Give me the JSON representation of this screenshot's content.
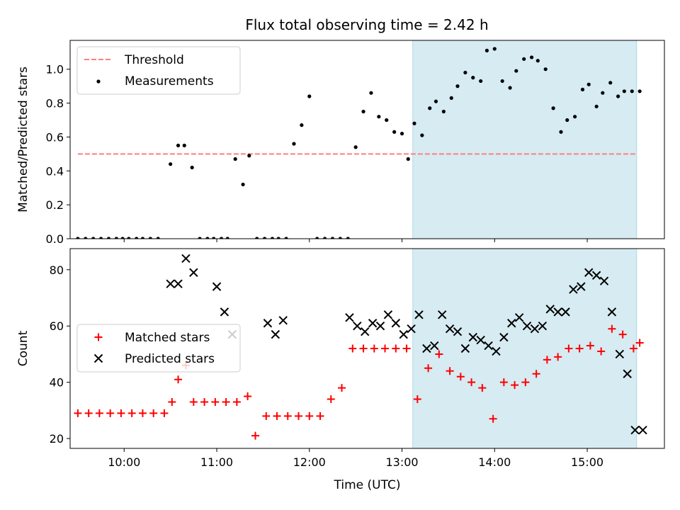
{
  "title": "Flux total observing time = 2.42 h",
  "chart_data": [
    {
      "type": "scatter",
      "ylabel": "Matched/Predicted stars",
      "xlabel": "",
      "xlim": [
        "09:25",
        "15:50"
      ],
      "ylim": [
        0,
        1.17
      ],
      "yticks": [
        "0.0",
        "0.2",
        "0.4",
        "0.6",
        "0.8",
        "1.0"
      ],
      "xticks": [
        "10:00",
        "11:00",
        "12:00",
        "13:00",
        "14:00",
        "15:00"
      ],
      "show_xtick_labels": false,
      "legend": {
        "position": "top-left",
        "entries": [
          "Threshold",
          "Measurements"
        ]
      },
      "shaded_span": {
        "from": "13:07",
        "to": "15:32",
        "color": "#add8e6"
      },
      "threshold": {
        "name": "Threshold",
        "value": 0.5,
        "from": "09:30",
        "to": "15:32",
        "color": "#ff7f7f"
      },
      "series": [
        {
          "name": "Measurements",
          "color": "#000000",
          "x": [
            "09:30",
            "09:35",
            "09:40",
            "09:45",
            "09:50",
            "09:55",
            "09:59",
            "10:03",
            "10:08",
            "10:12",
            "10:17",
            "10:22",
            "10:30",
            "10:35",
            "10:39",
            "10:44",
            "10:49",
            "10:54",
            "10:58",
            "11:03",
            "11:07",
            "11:12",
            "11:17",
            "11:21",
            "11:26",
            "11:31",
            "11:36",
            "11:40",
            "11:45",
            "11:50",
            "11:55",
            "12:00",
            "12:05",
            "12:10",
            "12:15",
            "12:20",
            "12:25",
            "12:30",
            "12:35",
            "12:40",
            "12:45",
            "12:50",
            "12:55",
            "13:00",
            "13:04",
            "13:08",
            "13:13",
            "13:18",
            "13:22",
            "13:27",
            "13:32",
            "13:36",
            "13:41",
            "13:46",
            "13:51",
            "13:55",
            "14:00",
            "14:05",
            "14:10",
            "14:14",
            "14:19",
            "14:24",
            "14:28",
            "14:33",
            "14:38",
            "14:43",
            "14:47",
            "14:52",
            "14:57",
            "15:01",
            "15:06",
            "15:10",
            "15:15",
            "15:20",
            "15:24",
            "15:29",
            "15:34"
          ],
          "y": [
            0,
            0,
            0,
            0,
            0,
            0,
            0,
            0,
            0,
            0,
            0,
            0,
            0.44,
            0.55,
            0.55,
            0.42,
            0,
            0,
            0,
            0,
            0,
            0.47,
            0.32,
            0.49,
            0,
            0,
            0,
            0,
            0,
            0.56,
            0.67,
            0.84,
            0,
            0,
            0,
            0,
            0,
            0.54,
            0.75,
            0.86,
            0.72,
            0.7,
            0.63,
            0.62,
            0.47,
            0.68,
            0.61,
            0.77,
            0.81,
            0.75,
            0.83,
            0.9,
            0.98,
            0.95,
            0.93,
            1.11,
            1.12,
            0.93,
            0.89,
            0.99,
            1.06,
            1.07,
            1.05,
            1.0,
            0.77,
            0.63,
            0.7,
            0.72,
            0.88,
            0.91,
            0.78,
            0.86,
            0.92,
            0.84,
            0.87,
            0.87,
            0.87
          ]
        }
      ]
    },
    {
      "type": "scatter",
      "ylabel": "Count",
      "xlabel": "Time (UTC)",
      "xlim": [
        "09:25",
        "15:50"
      ],
      "ylim": [
        16.5,
        87.5
      ],
      "yticks": [
        "20",
        "40",
        "60",
        "80"
      ],
      "xticks": [
        "10:00",
        "11:00",
        "12:00",
        "13:00",
        "14:00",
        "15:00"
      ],
      "show_xtick_labels": true,
      "legend": {
        "position": "center-left",
        "entries": [
          "Matched stars",
          "Predicted stars"
        ]
      },
      "shaded_span": {
        "from": "13:07",
        "to": "15:32",
        "color": "#add8e6"
      },
      "series": [
        {
          "name": "Matched stars",
          "marker": "+",
          "color": "#ff0000",
          "x": [
            "09:30",
            "09:37",
            "09:44",
            "09:51",
            "09:58",
            "10:05",
            "10:12",
            "10:19",
            "10:26",
            "10:31",
            "10:35",
            "10:40",
            "10:45",
            "10:52",
            "10:59",
            "11:06",
            "11:13",
            "11:20",
            "11:25",
            "11:32",
            "11:39",
            "11:46",
            "11:53",
            "12:00",
            "12:07",
            "12:14",
            "12:21",
            "12:28",
            "12:35",
            "12:42",
            "12:49",
            "12:56",
            "13:03",
            "13:10",
            "13:17",
            "13:24",
            "13:31",
            "13:38",
            "13:45",
            "13:52",
            "13:59",
            "14:06",
            "14:13",
            "14:20",
            "14:27",
            "14:34",
            "14:41",
            "14:48",
            "14:55",
            "15:02",
            "15:09",
            "15:16",
            "15:23",
            "15:30",
            "15:34"
          ],
          "y": [
            29,
            29,
            29,
            29,
            29,
            29,
            29,
            29,
            29,
            33,
            41,
            46,
            33,
            33,
            33,
            33,
            33,
            35,
            21,
            28,
            28,
            28,
            28,
            28,
            28,
            34,
            38,
            52,
            52,
            52,
            52,
            52,
            52,
            34,
            45,
            50,
            44,
            42,
            40,
            38,
            27,
            40,
            39,
            40,
            43,
            48,
            49,
            52,
            52,
            53,
            51,
            59,
            57,
            52,
            54
          ]
        },
        {
          "name": "Predicted stars",
          "marker": "x",
          "color": "#000000",
          "x": [
            "10:30",
            "10:35",
            "10:40",
            "10:45",
            "11:00",
            "11:05",
            "11:10",
            "11:33",
            "11:38",
            "11:43",
            "12:26",
            "12:31",
            "12:36",
            "12:41",
            "12:46",
            "12:51",
            "12:56",
            "13:01",
            "13:06",
            "13:11",
            "13:16",
            "13:21",
            "13:26",
            "13:31",
            "13:36",
            "13:41",
            "13:46",
            "13:51",
            "13:56",
            "14:01",
            "14:06",
            "14:11",
            "14:16",
            "14:21",
            "14:26",
            "14:31",
            "14:36",
            "14:41",
            "14:46",
            "14:51",
            "14:56",
            "15:01",
            "15:06",
            "15:11",
            "15:16",
            "15:21",
            "15:26",
            "15:31",
            "15:36"
          ],
          "y": [
            75,
            75,
            84,
            79,
            74,
            65,
            57,
            61,
            57,
            62,
            63,
            60,
            58,
            61,
            60,
            64,
            61,
            57,
            59,
            64,
            52,
            53,
            64,
            59,
            58,
            52,
            56,
            55,
            53,
            51,
            56,
            61,
            63,
            60,
            59,
            60,
            66,
            65,
            65,
            73,
            74,
            79,
            78,
            76,
            65,
            50,
            43,
            23,
            23
          ]
        }
      ]
    }
  ]
}
